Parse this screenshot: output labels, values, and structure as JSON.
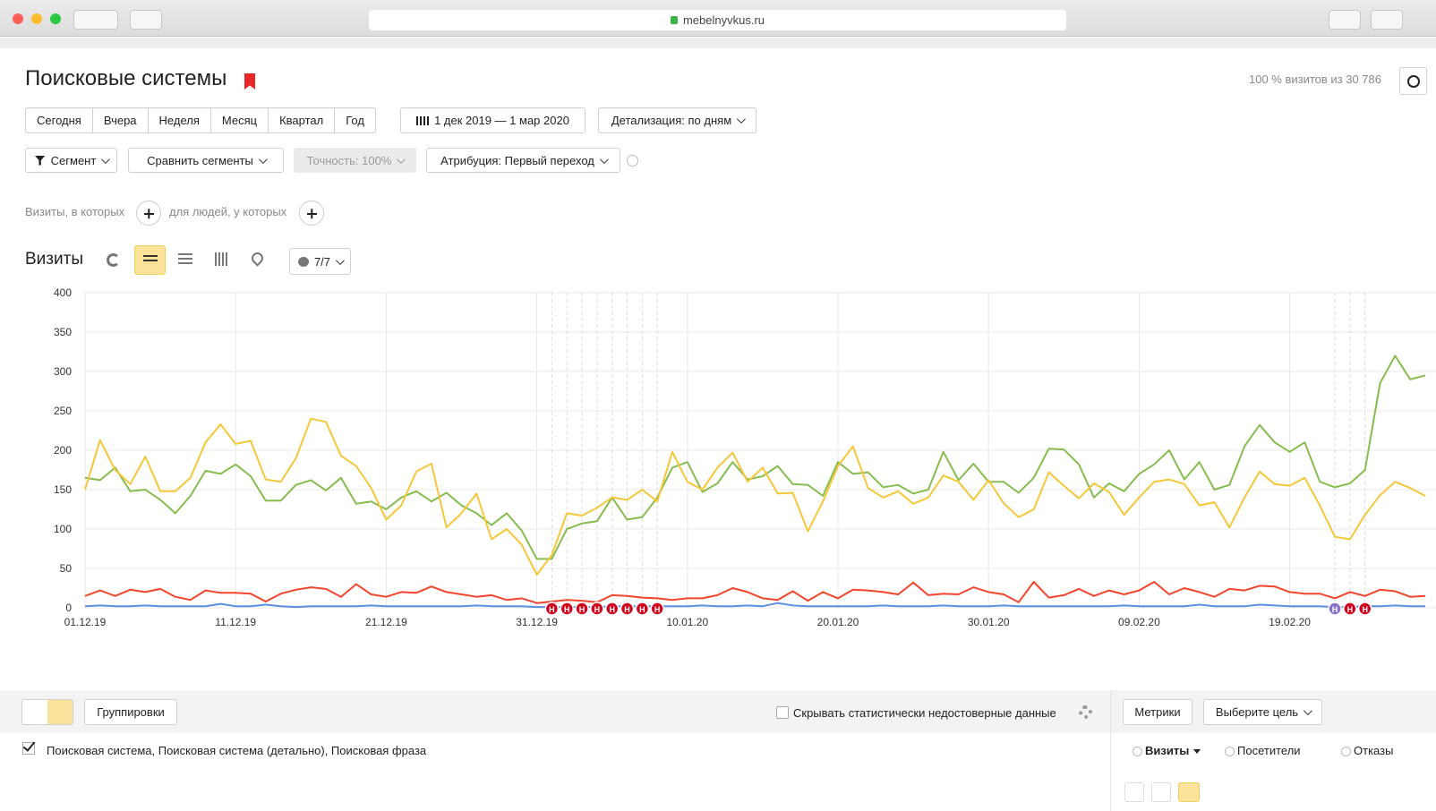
{
  "browser": {
    "url": "mebelnyvkus.ru"
  },
  "header": {
    "title": "Поисковые системы",
    "visits_note": "100 % визитов из 30 786"
  },
  "periods": [
    "Сегодня",
    "Вчера",
    "Неделя",
    "Месяц",
    "Квартал",
    "Год"
  ],
  "date_range": "1 дек 2019 — 1 мар 2020",
  "detail": "Детализация: по дням",
  "filters": {
    "segment": "Сегмент",
    "compare": "Сравнить сегменты",
    "accuracy": "Точность: 100%",
    "attribution": "Атрибуция: Первый переход"
  },
  "segment_builder": {
    "visits_where": "Визиты, в которых",
    "people_where": "для людей, у которых"
  },
  "chart_section": {
    "title": "Визиты",
    "series_count": "7/7",
    "holiday_marker": "Н"
  },
  "chart_data": {
    "type": "line",
    "categories": [
      "01.12.19",
      null,
      null,
      null,
      null,
      null,
      null,
      null,
      null,
      null,
      "11.12.19",
      null,
      null,
      null,
      null,
      null,
      null,
      null,
      null,
      null,
      "21.12.19",
      null,
      null,
      null,
      null,
      null,
      null,
      null,
      null,
      null,
      "31.12.19",
      null,
      null,
      null,
      null,
      null,
      null,
      null,
      null,
      null,
      "10.01.20",
      null,
      null,
      null,
      null,
      null,
      null,
      null,
      null,
      null,
      "20.01.20",
      null,
      null,
      null,
      null,
      null,
      null,
      null,
      null,
      null,
      "30.01.20",
      null,
      null,
      null,
      null,
      null,
      null,
      null,
      null,
      null,
      "09.02.20",
      null,
      null,
      null,
      null,
      null,
      null,
      null,
      null,
      null,
      "19.02.20",
      null,
      null,
      null,
      null,
      null,
      null,
      null,
      null,
      null
    ],
    "ylim": [
      0,
      400
    ],
    "yticks": [
      0,
      50,
      100,
      150,
      200,
      250,
      300,
      350,
      400
    ],
    "grid": true,
    "series": [
      {
        "color": "#86bd4e",
        "values": [
          165,
          162,
          178,
          148,
          150,
          137,
          120,
          142,
          174,
          170,
          182,
          167,
          136,
          136,
          156,
          162,
          149,
          165,
          132,
          135,
          125,
          140,
          148,
          135,
          146,
          130,
          120,
          105,
          120,
          98,
          62,
          62,
          100,
          107,
          110,
          140,
          112,
          115,
          140,
          178,
          185,
          147,
          158,
          185,
          163,
          167,
          180,
          157,
          156,
          142,
          185,
          170,
          172,
          153,
          156,
          145,
          150,
          198,
          162,
          183,
          160,
          160,
          146,
          165,
          202,
          201,
          182,
          140,
          158,
          148,
          170,
          182,
          200,
          163,
          185,
          150,
          156,
          205,
          232,
          210,
          198,
          210,
          160,
          153,
          158,
          175,
          285,
          320,
          290,
          295
        ]
      },
      {
        "color": "#f5c739",
        "values": [
          150,
          213,
          175,
          157,
          192,
          148,
          148,
          165,
          210,
          233,
          208,
          212,
          163,
          160,
          190,
          240,
          236,
          193,
          180,
          152,
          112,
          130,
          173,
          183,
          102,
          120,
          145,
          87,
          100,
          80,
          42,
          67,
          120,
          117,
          127,
          140,
          137,
          150,
          135,
          198,
          160,
          150,
          178,
          197,
          160,
          178,
          145,
          146,
          97,
          135,
          180,
          205,
          152,
          140,
          148,
          132,
          140,
          168,
          160,
          137,
          162,
          133,
          115,
          125,
          172,
          155,
          139,
          158,
          147,
          118,
          140,
          160,
          163,
          157,
          130,
          134,
          102,
          140,
          173,
          157,
          155,
          165,
          130,
          90,
          87,
          118,
          143,
          160,
          152,
          142
        ]
      },
      {
        "color": "#f2452d",
        "values": [
          15,
          22,
          15,
          23,
          20,
          24,
          14,
          10,
          22,
          19,
          19,
          18,
          8,
          18,
          23,
          26,
          24,
          14,
          30,
          17,
          14,
          20,
          19,
          27,
          20,
          17,
          14,
          16,
          10,
          12,
          6,
          8,
          10,
          9,
          7,
          16,
          15,
          13,
          12,
          10,
          12,
          12,
          16,
          25,
          20,
          12,
          10,
          21,
          9,
          20,
          12,
          23,
          22,
          20,
          17,
          32,
          16,
          18,
          17,
          26,
          20,
          17,
          7,
          33,
          13,
          16,
          24,
          15,
          22,
          17,
          22,
          33,
          17,
          25,
          20,
          14,
          24,
          22,
          28,
          27,
          20,
          18,
          18,
          12,
          20,
          15,
          23,
          21,
          14,
          15
        ]
      },
      {
        "color": "#5b8fe0",
        "values": [
          2,
          3,
          2,
          2,
          3,
          2,
          2,
          2,
          2,
          5,
          2,
          2,
          4,
          2,
          1,
          2,
          2,
          2,
          2,
          3,
          2,
          2,
          2,
          2,
          2,
          2,
          3,
          2,
          2,
          2,
          1,
          1,
          1,
          1,
          1,
          2,
          2,
          2,
          2,
          2,
          2,
          3,
          2,
          2,
          3,
          2,
          6,
          3,
          2,
          2,
          2,
          2,
          2,
          3,
          2,
          2,
          2,
          3,
          2,
          2,
          2,
          3,
          2,
          2,
          2,
          2,
          2,
          2,
          2,
          3,
          2,
          2,
          2,
          2,
          4,
          2,
          2,
          2,
          4,
          3,
          2,
          2,
          2,
          1,
          1,
          2,
          2,
          3,
          2,
          2
        ]
      }
    ]
  },
  "toolbar": {
    "groupings": "Группировки",
    "hide_unreliable": "Скрывать статистически недостоверные данные",
    "metrics": "Метрики",
    "goal": "Выберите цель"
  },
  "table": {
    "dimensions": "Поисковая система, Поисковая система (детально), Поисковая фраза",
    "columns": [
      "Визиты",
      "Посетители",
      "Отказы"
    ]
  }
}
